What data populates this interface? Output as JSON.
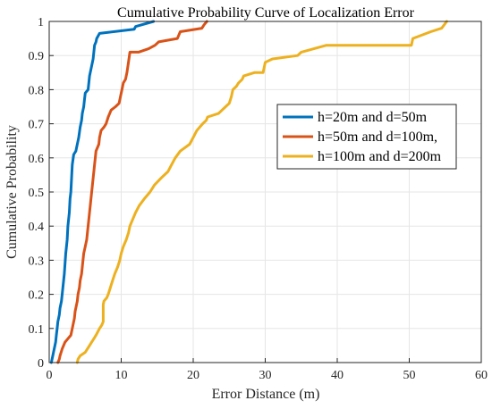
{
  "chart_data": {
    "type": "line",
    "title": "Cumulative Probability Curve of Localization Error",
    "xlabel": "Error Distance (m)",
    "ylabel": "Cumulative Probability",
    "xlim": [
      0,
      60
    ],
    "ylim": [
      0,
      1
    ],
    "xticks": [
      0,
      10,
      20,
      30,
      40,
      50,
      60
    ],
    "yticks": [
      0,
      0.1,
      0.2,
      0.3,
      0.4,
      0.5,
      0.6,
      0.7,
      0.8,
      0.9,
      1
    ],
    "xtick_labels": [
      "0",
      "10",
      "20",
      "30",
      "40",
      "50",
      "60"
    ],
    "ytick_labels": [
      "0",
      "0.1",
      "0.2",
      "0.3",
      "0.4",
      "0.5",
      "0.6",
      "0.7",
      "0.8",
      "0.9",
      "1"
    ],
    "grid": true,
    "legend_position": "right",
    "series": [
      {
        "name": "h=20m and d=50m",
        "color": "#0072BD",
        "points": [
          [
            0.3,
            0
          ],
          [
            0.4,
            0.01
          ],
          [
            0.5,
            0.02
          ],
          [
            0.6,
            0.03
          ],
          [
            0.7,
            0.04
          ],
          [
            0.8,
            0.05
          ],
          [
            0.9,
            0.06
          ],
          [
            1.0,
            0.08
          ],
          [
            1.1,
            0.1
          ],
          [
            1.2,
            0.12
          ],
          [
            1.4,
            0.14
          ],
          [
            1.5,
            0.16
          ],
          [
            1.7,
            0.18
          ],
          [
            1.8,
            0.2
          ],
          [
            1.9,
            0.22
          ],
          [
            2.0,
            0.24
          ],
          [
            2.1,
            0.26
          ],
          [
            2.2,
            0.29
          ],
          [
            2.3,
            0.32
          ],
          [
            2.5,
            0.36
          ],
          [
            2.6,
            0.4
          ],
          [
            2.8,
            0.44
          ],
          [
            2.9,
            0.48
          ],
          [
            3.0,
            0.5
          ],
          [
            3.1,
            0.54
          ],
          [
            3.2,
            0.58
          ],
          [
            3.4,
            0.61
          ],
          [
            3.7,
            0.62
          ],
          [
            3.9,
            0.64
          ],
          [
            4.1,
            0.66
          ],
          [
            4.3,
            0.69
          ],
          [
            4.5,
            0.71
          ],
          [
            4.6,
            0.73
          ],
          [
            4.8,
            0.75
          ],
          [
            4.9,
            0.77
          ],
          [
            5.0,
            0.79
          ],
          [
            5.4,
            0.8
          ],
          [
            5.5,
            0.82
          ],
          [
            5.6,
            0.84
          ],
          [
            5.8,
            0.86
          ],
          [
            5.9,
            0.87
          ],
          [
            6.1,
            0.89
          ],
          [
            6.2,
            0.91
          ],
          [
            6.3,
            0.93
          ],
          [
            6.5,
            0.94
          ],
          [
            6.6,
            0.95
          ],
          [
            7.0,
            0.965
          ],
          [
            11.8,
            0.977
          ],
          [
            12.0,
            0.985
          ],
          [
            14.5,
            1.0
          ]
        ]
      },
      {
        "name": "h=50m and d=100m,",
        "color": "#D95319",
        "points": [
          [
            1.2,
            0
          ],
          [
            1.4,
            0.01
          ],
          [
            1.5,
            0.02
          ],
          [
            1.8,
            0.04
          ],
          [
            2.2,
            0.06
          ],
          [
            2.6,
            0.07
          ],
          [
            3.0,
            0.08
          ],
          [
            3.3,
            0.11
          ],
          [
            3.5,
            0.13
          ],
          [
            3.6,
            0.15
          ],
          [
            3.9,
            0.18
          ],
          [
            4.0,
            0.2
          ],
          [
            4.2,
            0.22
          ],
          [
            4.3,
            0.24
          ],
          [
            4.5,
            0.26
          ],
          [
            4.6,
            0.28
          ],
          [
            4.7,
            0.3
          ],
          [
            4.8,
            0.32
          ],
          [
            5.0,
            0.34
          ],
          [
            5.2,
            0.36
          ],
          [
            5.3,
            0.38
          ],
          [
            5.4,
            0.4
          ],
          [
            5.5,
            0.42
          ],
          [
            5.6,
            0.44
          ],
          [
            5.7,
            0.46
          ],
          [
            5.8,
            0.48
          ],
          [
            6.0,
            0.52
          ],
          [
            6.1,
            0.54
          ],
          [
            6.2,
            0.56
          ],
          [
            6.3,
            0.58
          ],
          [
            6.5,
            0.62
          ],
          [
            6.9,
            0.64
          ],
          [
            7.0,
            0.66
          ],
          [
            7.2,
            0.68
          ],
          [
            7.6,
            0.69
          ],
          [
            7.9,
            0.7
          ],
          [
            8.2,
            0.72
          ],
          [
            8.6,
            0.74
          ],
          [
            9.2,
            0.75
          ],
          [
            9.7,
            0.76
          ],
          [
            9.9,
            0.78
          ],
          [
            10.1,
            0.8
          ],
          [
            10.3,
            0.82
          ],
          [
            10.6,
            0.83
          ],
          [
            10.8,
            0.85
          ],
          [
            11.0,
            0.88
          ],
          [
            11.2,
            0.91
          ],
          [
            12.4,
            0.91
          ],
          [
            13.8,
            0.92
          ],
          [
            14.7,
            0.93
          ],
          [
            15.2,
            0.94
          ],
          [
            16.5,
            0.945
          ],
          [
            17.8,
            0.95
          ],
          [
            18.2,
            0.97
          ],
          [
            21.2,
            0.98
          ],
          [
            21.5,
            0.99
          ],
          [
            21.9,
            1.0
          ]
        ]
      },
      {
        "name": "h=100m and d=200m",
        "color": "#EDB120",
        "points": [
          [
            3.9,
            0
          ],
          [
            4.0,
            0.01
          ],
          [
            4.3,
            0.02
          ],
          [
            5.0,
            0.03
          ],
          [
            5.3,
            0.04
          ],
          [
            5.6,
            0.05
          ],
          [
            5.9,
            0.06
          ],
          [
            6.2,
            0.07
          ],
          [
            6.5,
            0.08
          ],
          [
            7.0,
            0.1
          ],
          [
            7.3,
            0.11
          ],
          [
            7.5,
            0.12
          ],
          [
            7.5,
            0.17
          ],
          [
            7.6,
            0.18
          ],
          [
            8.0,
            0.19
          ],
          [
            8.2,
            0.2
          ],
          [
            8.5,
            0.22
          ],
          [
            8.8,
            0.24
          ],
          [
            9.1,
            0.26
          ],
          [
            9.5,
            0.28
          ],
          [
            9.8,
            0.3
          ],
          [
            10.0,
            0.32
          ],
          [
            10.3,
            0.34
          ],
          [
            10.7,
            0.36
          ],
          [
            11.0,
            0.38
          ],
          [
            11.2,
            0.4
          ],
          [
            11.6,
            0.42
          ],
          [
            12.0,
            0.44
          ],
          [
            12.5,
            0.46
          ],
          [
            13.2,
            0.48
          ],
          [
            14.0,
            0.5
          ],
          [
            14.6,
            0.52
          ],
          [
            15.5,
            0.54
          ],
          [
            16.5,
            0.56
          ],
          [
            17.0,
            0.58
          ],
          [
            17.5,
            0.6
          ],
          [
            18.2,
            0.62
          ],
          [
            19.5,
            0.64
          ],
          [
            20.0,
            0.66
          ],
          [
            20.5,
            0.68
          ],
          [
            21.3,
            0.7
          ],
          [
            21.8,
            0.71
          ],
          [
            22.0,
            0.72
          ],
          [
            23.5,
            0.73
          ],
          [
            24.0,
            0.74
          ],
          [
            24.5,
            0.75
          ],
          [
            25.0,
            0.76
          ],
          [
            25.3,
            0.78
          ],
          [
            25.5,
            0.8
          ],
          [
            26.0,
            0.81
          ],
          [
            26.3,
            0.82
          ],
          [
            26.8,
            0.83
          ],
          [
            27.0,
            0.84
          ],
          [
            28.5,
            0.85
          ],
          [
            29.7,
            0.85
          ],
          [
            30.0,
            0.88
          ],
          [
            31.0,
            0.89
          ],
          [
            34.5,
            0.9
          ],
          [
            35.0,
            0.91
          ],
          [
            38.5,
            0.93
          ],
          [
            50.3,
            0.93
          ],
          [
            50.5,
            0.95
          ],
          [
            53.0,
            0.97
          ],
          [
            54.5,
            0.98
          ],
          [
            55.2,
            1.0
          ]
        ]
      }
    ]
  }
}
